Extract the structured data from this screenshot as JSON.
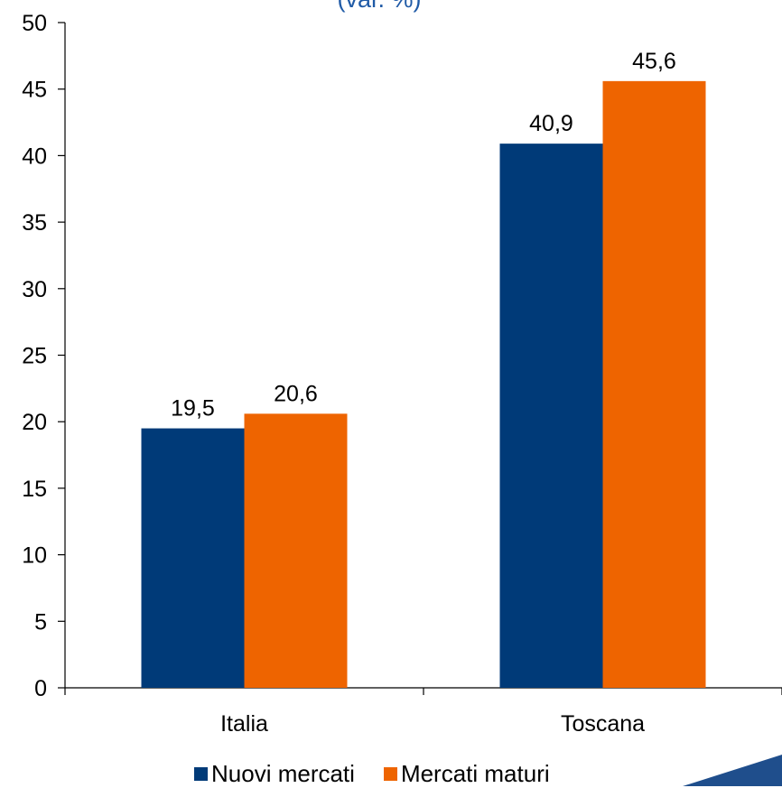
{
  "chart_data": {
    "type": "bar",
    "title": "(var. %)",
    "categories": [
      "Italia",
      "Toscana"
    ],
    "series": [
      {
        "name": "Nuovi mercati",
        "values": [
          19.5,
          40.9
        ],
        "color": "#003A78",
        "labels": [
          "19,5",
          "40,9"
        ]
      },
      {
        "name": "Mercati maturi",
        "values": [
          20.6,
          45.6
        ],
        "color": "#EE6400",
        "labels": [
          "20,6",
          "45,6"
        ]
      }
    ],
    "ylim": [
      0,
      50
    ],
    "yticks": [
      0,
      5,
      10,
      15,
      20,
      25,
      30,
      35,
      40,
      45,
      50
    ],
    "grid": false,
    "legend_position": "bottom"
  },
  "colors": {
    "title": "#1F5AA6",
    "axis": "#000000",
    "accent_shape": "#1F4E8C"
  }
}
